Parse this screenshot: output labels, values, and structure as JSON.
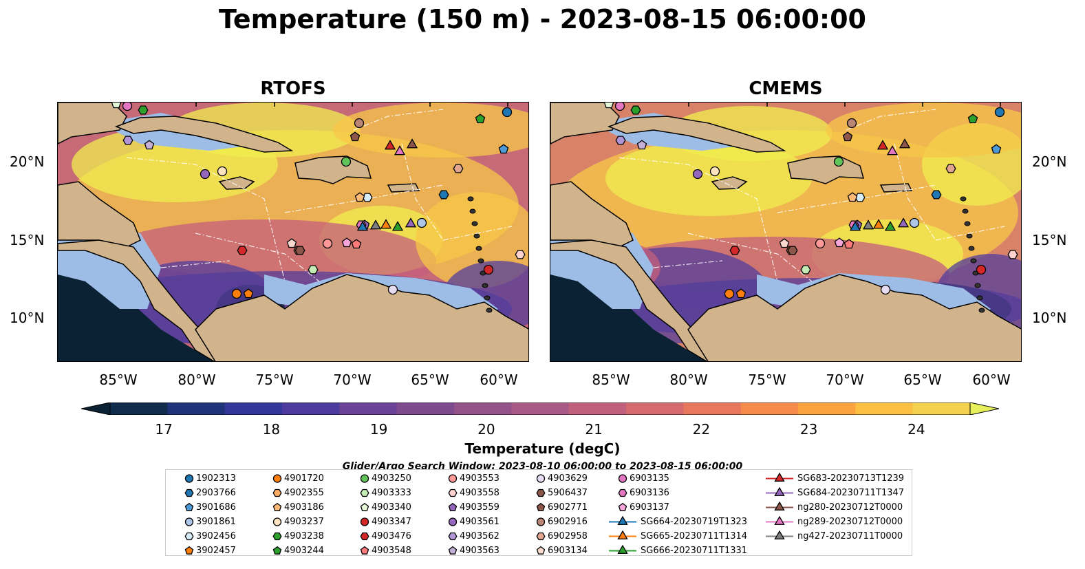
{
  "title": "Temperature (150 m) - 2023-08-15 06:00:00",
  "panels": [
    {
      "title": "RTOFS"
    },
    {
      "title": "CMEMS"
    }
  ],
  "axes": {
    "lon_ticks": [
      "85°W",
      "80°W",
      "75°W",
      "70°W",
      "65°W",
      "60°W"
    ],
    "lat_ticks": [
      "20°N",
      "15°N",
      "10°N"
    ]
  },
  "colorbar": {
    "label": "Temperature (degC)",
    "ticks": [
      "17",
      "18",
      "19",
      "20",
      "21",
      "22",
      "23",
      "24"
    ],
    "min": 16.5,
    "max": 24.5,
    "step": 0.5,
    "colors": [
      "#0a2233",
      "#0f2c4c",
      "#1f337a",
      "#33369a",
      "#4d3a9e",
      "#6a4296",
      "#7e4a8e",
      "#94528a",
      "#a95985",
      "#c0607c",
      "#d56a6e",
      "#e8785d",
      "#f58c4b",
      "#fba33e",
      "#fbbf41",
      "#f4d24e",
      "#e5f05a"
    ]
  },
  "map_colors": {
    "land": "#d2b48c",
    "shallow": "#9dbde6",
    "deep": "#0a2233",
    "warm": "#f7c748",
    "hot": "#f0ee4f",
    "mid": "#c45f7c",
    "cool": "#533d9b"
  },
  "search_window": "Glider/Argo Search Window: 2023-08-10 06:00:00 to 2023-08-15 06:00:00",
  "legend": {
    "columns": [
      [
        {
          "label": "1902313",
          "marker": "circle",
          "color": "#1f77b4"
        },
        {
          "label": "2903766",
          "marker": "hexagon",
          "color": "#1f77b4"
        },
        {
          "label": "3901686",
          "marker": "pentagon",
          "color": "#4e9ad6"
        },
        {
          "label": "3901861",
          "marker": "circle",
          "color": "#aec7e8"
        },
        {
          "label": "3902456",
          "marker": "hexagon",
          "color": "#d6ebf8"
        },
        {
          "label": "3902457",
          "marker": "pentagon",
          "color": "#ff7f0e"
        }
      ],
      [
        {
          "label": "4901720",
          "marker": "circle",
          "color": "#ff7f0e"
        },
        {
          "label": "4902355",
          "marker": "hexagon",
          "color": "#ffac63"
        },
        {
          "label": "4903186",
          "marker": "pentagon",
          "color": "#ffbb78"
        },
        {
          "label": "4903237",
          "marker": "circle",
          "color": "#ffe4c2"
        },
        {
          "label": "4903238",
          "marker": "hexagon",
          "color": "#2ca02c"
        },
        {
          "label": "4903244",
          "marker": "pentagon",
          "color": "#2ca02c"
        }
      ],
      [
        {
          "label": "4903250",
          "marker": "circle",
          "color": "#61c45b"
        },
        {
          "label": "4903333",
          "marker": "hexagon",
          "color": "#c4ecb4"
        },
        {
          "label": "4903340",
          "marker": "pentagon",
          "color": "#e4f7d8"
        },
        {
          "label": "4903347",
          "marker": "circle",
          "color": "#d62728"
        },
        {
          "label": "4903476",
          "marker": "hexagon",
          "color": "#d62728"
        },
        {
          "label": "4903548",
          "marker": "pentagon",
          "color": "#ff7b7b"
        }
      ],
      [
        {
          "label": "4903553",
          "marker": "circle",
          "color": "#ff9896"
        },
        {
          "label": "4903558",
          "marker": "hexagon",
          "color": "#ffd2d0"
        },
        {
          "label": "4903559",
          "marker": "pentagon",
          "color": "#9467bd"
        },
        {
          "label": "4903561",
          "marker": "circle",
          "color": "#9467bd"
        },
        {
          "label": "4903562",
          "marker": "hexagon",
          "color": "#b295d6"
        },
        {
          "label": "4903563",
          "marker": "pentagon",
          "color": "#c5b0d5"
        }
      ],
      [
        {
          "label": "4903629",
          "marker": "circle",
          "color": "#e7dcf2"
        },
        {
          "label": "5906437",
          "marker": "hexagon",
          "color": "#8c564b"
        },
        {
          "label": "6902771",
          "marker": "pentagon",
          "color": "#8c564b"
        },
        {
          "label": "6902916",
          "marker": "circle",
          "color": "#b98574"
        },
        {
          "label": "6902958",
          "marker": "hexagon",
          "color": "#e2a58f"
        },
        {
          "label": "6903134",
          "marker": "pentagon",
          "color": "#f9d8cd"
        }
      ],
      [
        {
          "label": "6903135",
          "marker": "circle",
          "color": "#e377c2"
        },
        {
          "label": "6903136",
          "marker": "hexagon",
          "color": "#e377c2"
        },
        {
          "label": "6903137",
          "marker": "pentagon",
          "color": "#f7a6dc"
        },
        {
          "label": "SG664-20230719T1323",
          "marker": "triangle",
          "color": "#1f77b4",
          "line": true
        },
        {
          "label": "SG665-20230711T1314",
          "marker": "triangle",
          "color": "#ff7f0e",
          "line": true
        },
        {
          "label": "SG666-20230711T1331",
          "marker": "triangle",
          "color": "#2ca02c",
          "line": true
        }
      ],
      [
        {
          "label": "SG683-20230713T1239",
          "marker": "triangle",
          "color": "#d62728",
          "line": true
        },
        {
          "label": "SG684-20230711T1347",
          "marker": "triangle",
          "color": "#9467bd",
          "line": true
        },
        {
          "label": "ng280-20230712T0000",
          "marker": "triangle",
          "color": "#8c564b",
          "line": true
        },
        {
          "label": "ng289-20230712T0000",
          "marker": "triangle",
          "color": "#e377c2",
          "line": true
        },
        {
          "label": "ng427-20230711T0000",
          "marker": "triangle",
          "color": "#7f7f7f",
          "line": true
        }
      ]
    ]
  }
}
